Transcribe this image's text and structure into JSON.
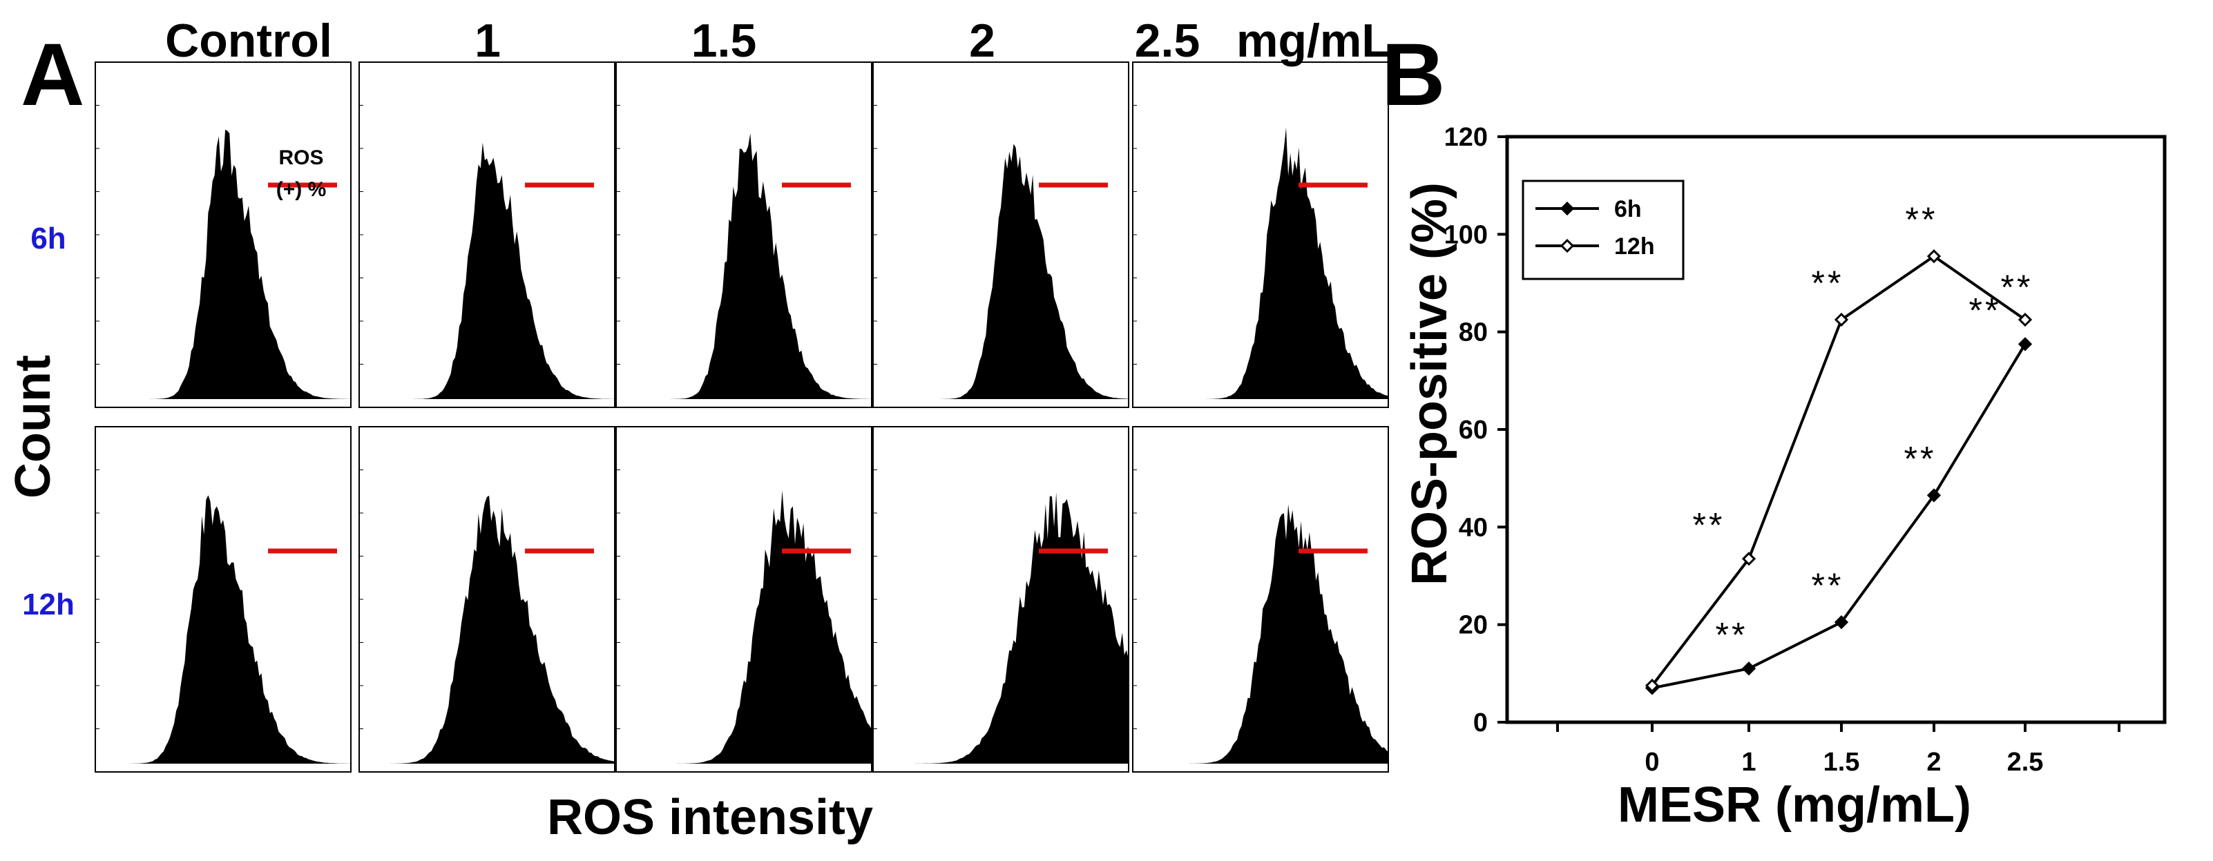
{
  "panel_a": {
    "letter": "A",
    "columns": [
      "Control",
      "1",
      "1.5",
      "2",
      "2.5"
    ],
    "unit": "mg/mL",
    "rows": [
      "6h",
      "12h"
    ],
    "ylabel": "Count",
    "xlabel": "ROS intensity",
    "ros_note_line1": "ROS",
    "ros_note_line2": "(+) %",
    "gate_color": "#e01010",
    "row_label_color": "#1a1ad6",
    "histogram_peaks": {
      "6h": [
        0.5,
        0.5,
        0.5,
        0.55,
        0.6
      ],
      "12h": [
        0.45,
        0.5,
        0.65,
        0.7,
        0.6
      ]
    },
    "histogram_widths": {
      "6h": [
        0.09,
        0.09,
        0.09,
        0.09,
        0.1
      ],
      "12h": [
        0.1,
        0.12,
        0.13,
        0.17,
        0.12
      ]
    }
  },
  "chart_data": {
    "type": "line",
    "panel_letter": "B",
    "title": "",
    "xlabel": "MESR (mg/mL)",
    "ylabel": "ROS-positive (%)",
    "categories": [
      "0",
      "1",
      "1.5",
      "2",
      "2.5"
    ],
    "xticks": [
      "0",
      "1",
      "1.5",
      "2",
      "2.5"
    ],
    "yticks": [
      "0",
      "20",
      "40",
      "60",
      "80",
      "100",
      "120"
    ],
    "ylim": [
      0,
      120
    ],
    "legend_position": "top-left",
    "series": [
      {
        "name": "6h",
        "marker": "filled-diamond",
        "values": [
          7,
          11,
          20.5,
          46.5,
          77.5
        ],
        "significance": [
          "",
          "**",
          "**",
          "**",
          "**"
        ]
      },
      {
        "name": "12h",
        "marker": "open-diamond",
        "values": [
          7.5,
          33.5,
          82.5,
          95.5,
          82.5
        ],
        "significance": [
          "",
          "**",
          "**",
          "**",
          "**"
        ]
      }
    ]
  }
}
